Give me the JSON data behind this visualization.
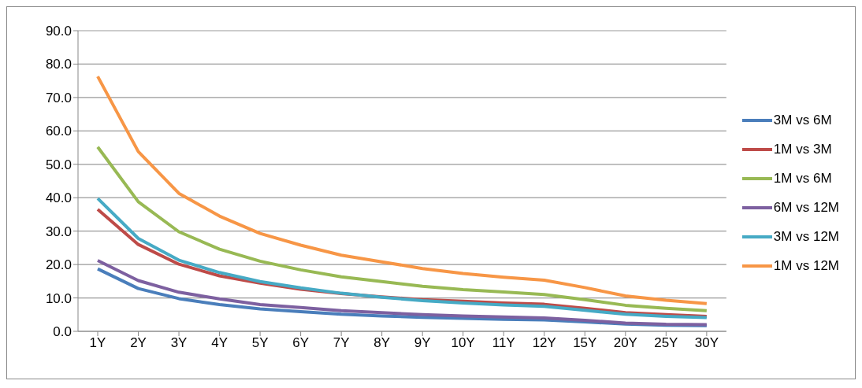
{
  "chart_data": {
    "type": "line",
    "categories": [
      "1Y",
      "2Y",
      "3Y",
      "4Y",
      "5Y",
      "6Y",
      "7Y",
      "8Y",
      "9Y",
      "10Y",
      "11Y",
      "12Y",
      "15Y",
      "20Y",
      "25Y",
      "30Y"
    ],
    "series": [
      {
        "name": "3M vs 6M",
        "color": "#4a7ebb",
        "values": [
          18.7,
          12.8,
          9.8,
          8.0,
          6.7,
          5.9,
          5.1,
          4.6,
          4.2,
          3.9,
          3.6,
          3.4,
          2.8,
          2.2,
          1.8,
          1.7
        ]
      },
      {
        "name": "1M vs 3M",
        "color": "#be4b48",
        "values": [
          36.5,
          26.0,
          20.1,
          16.6,
          14.4,
          12.6,
          11.3,
          10.3,
          9.5,
          9.0,
          8.5,
          8.1,
          6.9,
          5.6,
          5.0,
          4.5
        ]
      },
      {
        "name": "1M vs 6M",
        "color": "#98b954",
        "values": [
          55.2,
          38.8,
          29.8,
          24.6,
          21.0,
          18.4,
          16.3,
          14.9,
          13.5,
          12.5,
          11.8,
          11.0,
          9.5,
          7.8,
          6.9,
          6.2
        ]
      },
      {
        "name": "6M vs 12M",
        "color": "#7d60a0",
        "values": [
          21.2,
          15.2,
          11.7,
          9.7,
          8.0,
          7.1,
          6.2,
          5.6,
          5.0,
          4.6,
          4.3,
          4.0,
          3.3,
          2.5,
          2.1,
          2.0
        ]
      },
      {
        "name": "3M vs 12M",
        "color": "#46aac5",
        "values": [
          39.8,
          27.8,
          21.3,
          17.6,
          14.9,
          13.0,
          11.4,
          10.2,
          9.2,
          8.5,
          7.9,
          7.5,
          6.3,
          5.1,
          4.5,
          4.1
        ]
      },
      {
        "name": "1M vs 12M",
        "color": "#f79646",
        "values": [
          76.3,
          53.8,
          41.3,
          34.5,
          29.3,
          25.8,
          22.8,
          20.8,
          18.8,
          17.3,
          16.2,
          15.3,
          13.1,
          10.6,
          9.3,
          8.3
        ]
      }
    ],
    "ylim": [
      0,
      90
    ],
    "yticks": [
      {
        "value": 0,
        "label": "0.0"
      },
      {
        "value": 10,
        "label": "10.0"
      },
      {
        "value": 20,
        "label": "20.0"
      },
      {
        "value": 30,
        "label": "30.0"
      },
      {
        "value": 40,
        "label": "40.0"
      },
      {
        "value": 50,
        "label": "50.0"
      },
      {
        "value": 60,
        "label": "60.0"
      },
      {
        "value": 70,
        "label": "70.0"
      },
      {
        "value": 80,
        "label": "80.0"
      },
      {
        "value": 90,
        "label": "90.0"
      }
    ],
    "grid": "y",
    "legend": "right",
    "marker": "none",
    "line_style": "solid"
  }
}
